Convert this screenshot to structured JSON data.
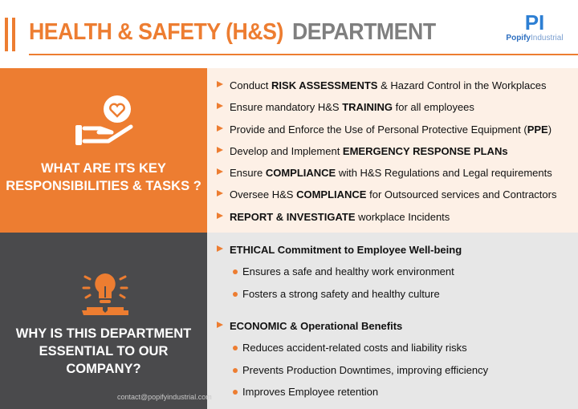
{
  "header": {
    "title_orange": "HEALTH & SAFETY (H&S)",
    "title_gray": "DEPARTMENT",
    "logo_mark": "PI",
    "logo_brand": "Popify",
    "logo_suffix": "Industrial"
  },
  "section1": {
    "heading": "WHAT ARE ITS KEY RESPONSIBILITIES & TASKS ?",
    "icon": "hand-heart-icon",
    "items": [
      {
        "pre": "Conduct ",
        "bold": "RISK ASSESSMENTS",
        "post": " & Hazard Control in the Workplaces"
      },
      {
        "pre": "Ensure mandatory H&S ",
        "bold": "TRAINING",
        "post": " for all employees"
      },
      {
        "pre": "Provide and Enforce the Use of Personal Protective Equipment (",
        "bold": "PPE",
        "post": ")"
      },
      {
        "pre": "Develop and Implement ",
        "bold": "EMERGENCY RESPONSE PLANs",
        "post": ""
      },
      {
        "pre": "Ensure ",
        "bold": "COMPLIANCE",
        "post": " with H&S Regulations and Legal requirements"
      },
      {
        "pre": "Oversee H&S ",
        "bold": "COMPLIANCE",
        "post": " for Outsourced services and Contractors"
      },
      {
        "pre": "",
        "bold": "REPORT & INVESTIGATE",
        "post": " workplace Incidents"
      }
    ]
  },
  "section2": {
    "heading": "WHY IS THIS DEPARTMENT ESSENTIAL TO OUR COMPANY?",
    "icon": "lightbulb-book-icon",
    "groups": [
      {
        "title": "ETHICAL Commitment to Employee Well-being",
        "items": [
          "Ensures a safe and healthy work environment",
          "Fosters a strong safety and healthy culture"
        ]
      },
      {
        "title": "ECONOMIC & Operational Benefits",
        "items": [
          "Reduces accident-related costs and liability risks",
          "Prevents Production Downtimes, improving efficiency",
          "Improves Employee retention"
        ]
      }
    ]
  },
  "footer": {
    "contact": "contact@popifyindustrial.com"
  },
  "colors": {
    "orange": "#ed7d31",
    "dark": "#4a4a4c",
    "gray_text": "#7f7f7f",
    "peach": "#fdf0e6",
    "light_gray": "#e7e7e7"
  }
}
